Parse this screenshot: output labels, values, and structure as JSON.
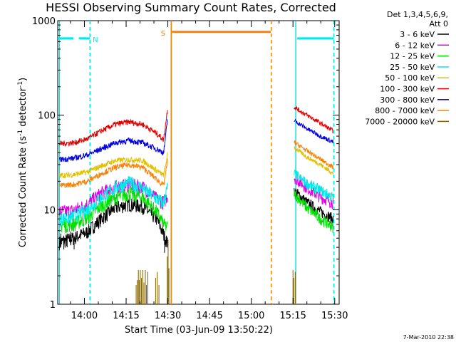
{
  "chart_data": {
    "type": "line",
    "title": "HESSI Observing Summary Count Rates, Corrected",
    "xlabel": "Start Time (03-Jun-09 13:50:22)",
    "ylabel_main": "Corrected Count Rate (s",
    "ylabel_sup1": "-1",
    "ylabel_mid": " detector",
    "ylabel_sup2": "-1",
    "ylabel_end": ")",
    "yscale": "log",
    "ylim": [
      1,
      1000
    ],
    "xlim_minutes": [
      830.4,
      931.6
    ],
    "x_ticks": [
      {
        "label": "14:00",
        "minutes": 840
      },
      {
        "label": "14:15",
        "minutes": 855
      },
      {
        "label": "14:30",
        "minutes": 870
      },
      {
        "label": "14:45",
        "minutes": 885
      },
      {
        "label": "15:00",
        "minutes": 900
      },
      {
        "label": "15:15",
        "minutes": 915
      },
      {
        "label": "15:30",
        "minutes": 930
      }
    ],
    "y_ticks": [
      {
        "label": "1",
        "value": 1
      },
      {
        "label": "10",
        "value": 10
      },
      {
        "label": "100",
        "value": 100
      },
      {
        "label": "1000",
        "value": 1000
      }
    ],
    "legend": {
      "header": [
        "Det 1,3,4,5,6,9,",
        "Att 0"
      ],
      "position": "right",
      "entries": [
        {
          "label": "3 - 6 keV",
          "color": "#000000"
        },
        {
          "label": "6 - 12 keV",
          "color": "#e000e0"
        },
        {
          "label": "12 - 25 keV",
          "color": "#00e000"
        },
        {
          "label": "25 - 50 keV",
          "color": "#00e8e8"
        },
        {
          "label": "50 - 100 keV",
          "color": "#e0c000"
        },
        {
          "label": "100 - 300 keV",
          "color": "#e00000"
        },
        {
          "label": "300 - 800 keV",
          "color": "#0000e0"
        },
        {
          "label": "800 - 7000 keV",
          "color": "#ff8000"
        },
        {
          "label": "7000 - 20000 keV",
          "color": "#806000"
        }
      ]
    },
    "series": [
      {
        "name": "3 - 6 keV",
        "color": "#000000",
        "pre": [
          [
            831,
            4.5
          ],
          [
            836,
            5
          ],
          [
            841,
            5.8
          ],
          [
            846,
            8
          ],
          [
            851,
            10.5
          ],
          [
            856,
            11.5
          ],
          [
            861,
            10.8
          ],
          [
            866,
            8
          ],
          [
            868.5,
            5.5
          ],
          [
            870,
            4.3
          ]
        ],
        "post": [
          [
            915.4,
            16
          ],
          [
            920,
            12
          ],
          [
            925,
            9.5
          ],
          [
            929.5,
            8
          ]
        ]
      },
      {
        "name": "6 - 12 keV",
        "color": "#e000e0",
        "pre": [
          [
            831,
            9.5
          ],
          [
            836,
            9.8
          ],
          [
            841,
            11.5
          ],
          [
            846,
            15
          ],
          [
            851,
            17.5
          ],
          [
            856,
            18.5
          ],
          [
            861,
            17.5
          ],
          [
            866,
            13
          ],
          [
            868.5,
            12
          ],
          [
            870,
            14.5
          ]
        ],
        "post": [
          [
            915.4,
            22
          ],
          [
            920,
            17
          ],
          [
            925,
            13.5
          ],
          [
            929.5,
            11.8
          ]
        ]
      },
      {
        "name": "12 - 25 keV",
        "color": "#00e000",
        "pre": [
          [
            831,
            6.8
          ],
          [
            836,
            7
          ],
          [
            841,
            8.2
          ],
          [
            846,
            11
          ],
          [
            851,
            13.5
          ],
          [
            856,
            15
          ],
          [
            861,
            13.5
          ],
          [
            866,
            9.5
          ],
          [
            868.5,
            7
          ],
          [
            870,
            6.5
          ]
        ],
        "post": [
          [
            915.4,
            15
          ],
          [
            920,
            10.5
          ],
          [
            925,
            8
          ],
          [
            929.5,
            6.5
          ]
        ]
      },
      {
        "name": "25 - 50 keV",
        "color": "#00e8e8",
        "pre": [
          [
            831,
            8
          ],
          [
            836,
            8.5
          ],
          [
            841,
            10
          ],
          [
            846,
            13.5
          ],
          [
            851,
            17
          ],
          [
            856,
            19.5
          ],
          [
            861,
            17
          ],
          [
            866,
            13
          ],
          [
            868.5,
            12
          ],
          [
            870,
            18
          ]
        ],
        "post": [
          [
            915.4,
            24
          ],
          [
            920,
            19
          ],
          [
            925,
            16
          ],
          [
            929.5,
            13.5
          ]
        ]
      },
      {
        "name": "50 - 100 keV",
        "color": "#e0c000",
        "pre": [
          [
            831,
            23
          ],
          [
            836,
            23.5
          ],
          [
            841,
            25
          ],
          [
            846,
            29
          ],
          [
            851,
            33
          ],
          [
            856,
            34
          ],
          [
            861,
            33
          ],
          [
            866,
            26
          ],
          [
            868.5,
            23
          ],
          [
            870,
            40
          ]
        ],
        "post": [
          [
            915.4,
            46
          ],
          [
            920,
            36
          ],
          [
            925,
            30
          ],
          [
            929.5,
            24
          ]
        ]
      },
      {
        "name": "100 - 300 keV",
        "color": "#e00000",
        "pre": [
          [
            831,
            50
          ],
          [
            836,
            51
          ],
          [
            841,
            56
          ],
          [
            846,
            68
          ],
          [
            851,
            80
          ],
          [
            856,
            85
          ],
          [
            861,
            80
          ],
          [
            866,
            64
          ],
          [
            868.5,
            55
          ],
          [
            870,
            125
          ]
        ],
        "post": [
          [
            915.4,
            122
          ],
          [
            920,
            100
          ],
          [
            925,
            82
          ],
          [
            929.5,
            68
          ]
        ]
      },
      {
        "name": "300 - 800 keV",
        "color": "#0000e0",
        "pre": [
          [
            831,
            34
          ],
          [
            836,
            35
          ],
          [
            841,
            38
          ],
          [
            846,
            44
          ],
          [
            851,
            51
          ],
          [
            856,
            54
          ],
          [
            861,
            51
          ],
          [
            866,
            44
          ],
          [
            868.5,
            40
          ],
          [
            870,
            95
          ]
        ],
        "post": [
          [
            915.4,
            88
          ],
          [
            920,
            72
          ],
          [
            925,
            60
          ],
          [
            929.5,
            52
          ]
        ]
      },
      {
        "name": "800 - 7000 keV",
        "color": "#ff8000",
        "pre": [
          [
            831,
            18
          ],
          [
            836,
            18.5
          ],
          [
            841,
            20
          ],
          [
            846,
            24
          ],
          [
            851,
            28
          ],
          [
            856,
            30
          ],
          [
            861,
            28
          ],
          [
            866,
            21
          ],
          [
            868.5,
            18
          ],
          [
            870,
            35
          ]
        ],
        "post": [
          [
            915.4,
            52
          ],
          [
            920,
            42
          ],
          [
            925,
            34
          ],
          [
            929.5,
            28
          ]
        ]
      },
      {
        "name": "7000 - 20000 keV",
        "color": "#806000",
        "pre": [],
        "post": []
      }
    ],
    "annotations": [
      {
        "label": "N",
        "color": "#00e8e8"
      },
      {
        "label": "S",
        "color": "#ff8000"
      }
    ],
    "footer": "7-Mar-2010 22:38"
  }
}
